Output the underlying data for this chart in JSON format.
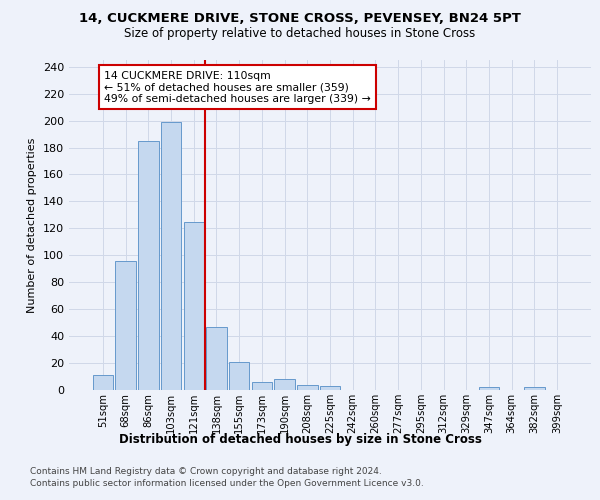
{
  "title1": "14, CUCKMERE DRIVE, STONE CROSS, PEVENSEY, BN24 5PT",
  "title2": "Size of property relative to detached houses in Stone Cross",
  "xlabel": "Distribution of detached houses by size in Stone Cross",
  "ylabel": "Number of detached properties",
  "categories": [
    "51sqm",
    "68sqm",
    "86sqm",
    "103sqm",
    "121sqm",
    "138sqm",
    "155sqm",
    "173sqm",
    "190sqm",
    "208sqm",
    "225sqm",
    "242sqm",
    "260sqm",
    "277sqm",
    "295sqm",
    "312sqm",
    "329sqm",
    "347sqm",
    "364sqm",
    "382sqm",
    "399sqm"
  ],
  "values": [
    11,
    96,
    185,
    199,
    125,
    47,
    21,
    6,
    8,
    4,
    3,
    0,
    0,
    0,
    0,
    0,
    0,
    2,
    0,
    2,
    0
  ],
  "bar_color": "#c5d8ef",
  "bar_edge_color": "#6699cc",
  "vline_x": 4.5,
  "vline_color": "#cc0000",
  "annotation_text": "14 CUCKMERE DRIVE: 110sqm\n← 51% of detached houses are smaller (359)\n49% of semi-detached houses are larger (339) →",
  "annotation_box_color": "#ffffff",
  "annotation_box_edge_color": "#cc0000",
  "ylim": [
    0,
    245
  ],
  "yticks": [
    0,
    20,
    40,
    60,
    80,
    100,
    120,
    140,
    160,
    180,
    200,
    220,
    240
  ],
  "footer1": "Contains HM Land Registry data © Crown copyright and database right 2024.",
  "footer2": "Contains public sector information licensed under the Open Government Licence v3.0.",
  "background_color": "#eef2fa",
  "grid_color": "#d0d8e8",
  "title1_fontsize": 9.5,
  "title2_fontsize": 8.5
}
